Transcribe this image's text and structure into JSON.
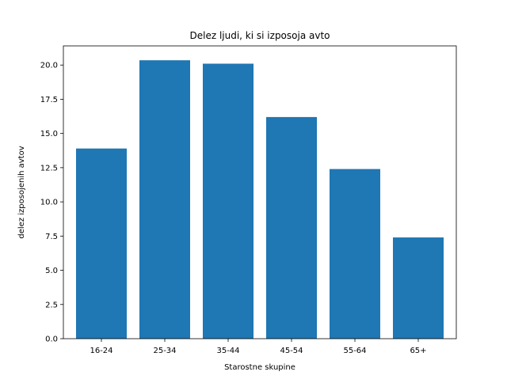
{
  "chart_data": {
    "type": "bar",
    "title": "Delez ljudi, ki si izposoja avto",
    "xlabel": "Starostne skupine",
    "ylabel": "delez izposojenih avtov",
    "categories": [
      "16-24",
      "25-34",
      "35-44",
      "45-54",
      "55-64",
      "65+"
    ],
    "values": [
      13.9,
      20.35,
      20.1,
      16.2,
      12.4,
      7.4
    ],
    "ylim": [
      0,
      21.4
    ],
    "yticks": [
      "0.0",
      "2.5",
      "5.0",
      "7.5",
      "10.0",
      "12.5",
      "15.0",
      "17.5",
      "20.0"
    ],
    "grid": false,
    "legend": "none",
    "colors": {
      "bar": "#1f77b4",
      "axis": "#000000",
      "background": "#ffffff"
    }
  }
}
